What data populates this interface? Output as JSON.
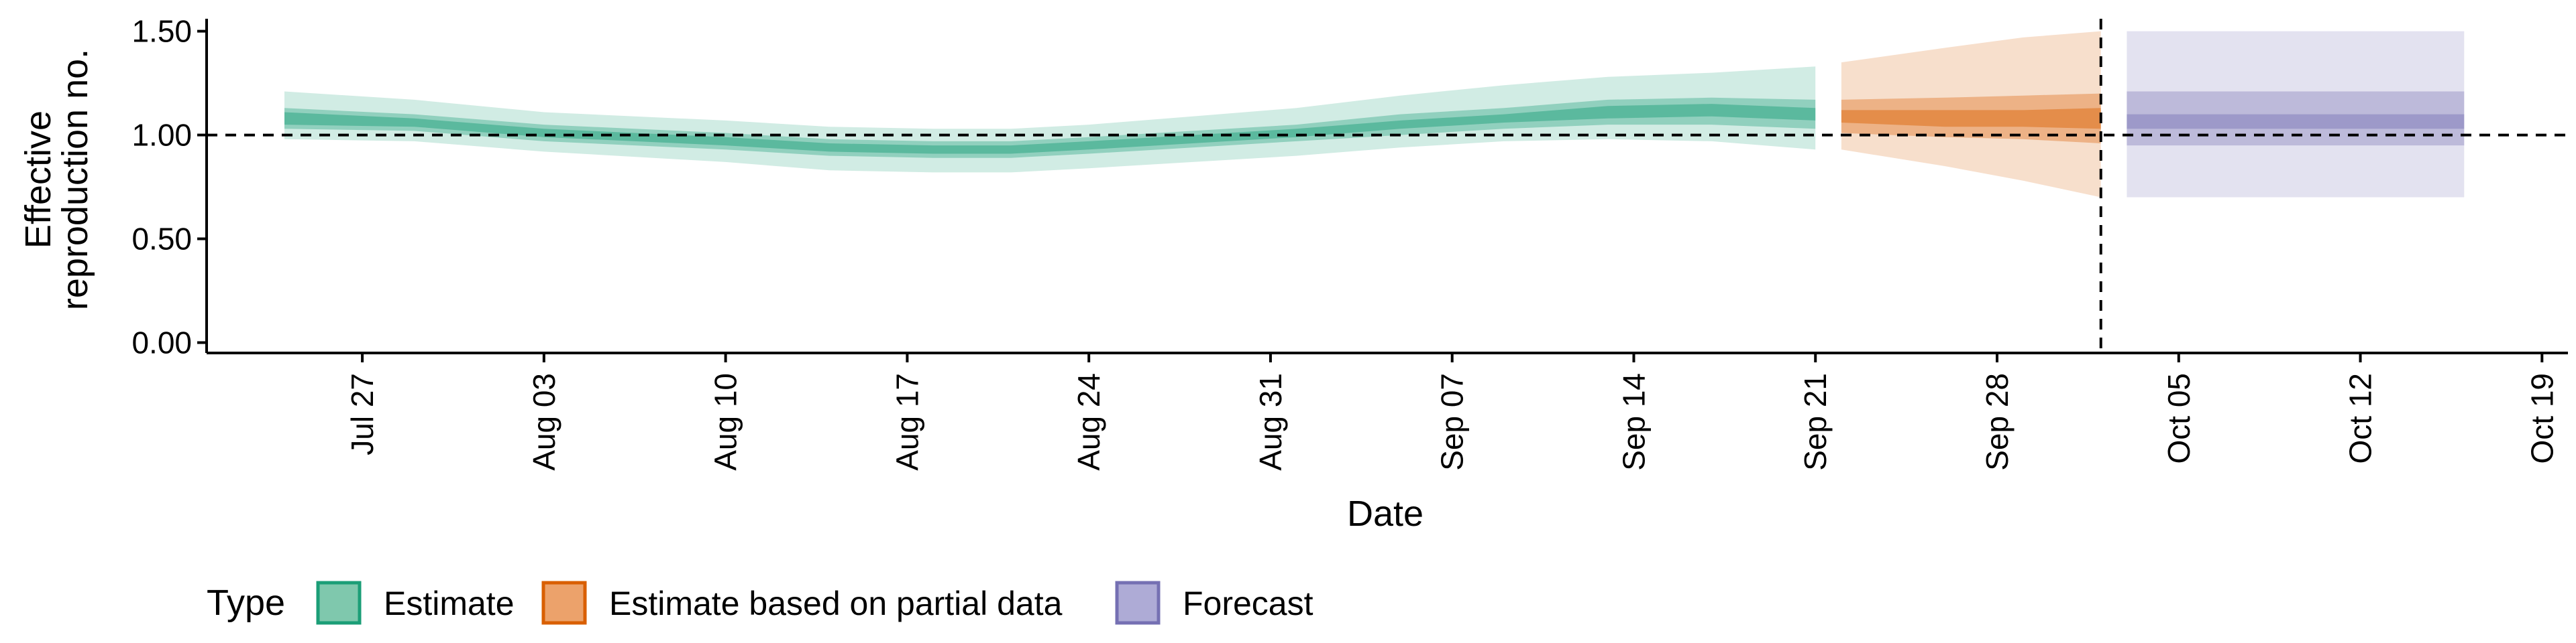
{
  "chart_data": {
    "type": "area",
    "xlabel": "Date",
    "ylabel_lines": [
      "Effective",
      "reproduction no."
    ],
    "x_range": [
      "2020-07-21",
      "2020-10-20"
    ],
    "ylim": [
      -0.05,
      1.56
    ],
    "y_ticks": [
      0.0,
      0.5,
      1.0,
      1.5
    ],
    "y_tick_labels": [
      "0.00",
      "0.50",
      "1.00",
      "1.50"
    ],
    "x_ticks": [
      "2020-07-27",
      "2020-08-03",
      "2020-08-10",
      "2020-08-17",
      "2020-08-24",
      "2020-08-31",
      "2020-09-07",
      "2020-09-14",
      "2020-09-21",
      "2020-09-28",
      "2020-10-05",
      "2020-10-12",
      "2020-10-19"
    ],
    "x_tick_labels": [
      "Jul 27",
      "Aug 03",
      "Aug 10",
      "Aug 17",
      "Aug 24",
      "Aug 31",
      "Sep 07",
      "Sep 14",
      "Sep 21",
      "Sep 28",
      "Oct 05",
      "Oct 12",
      "Oct 19"
    ],
    "reference_line_y": 1.0,
    "vertical_line_date": "2020-10-02",
    "grid": false,
    "legend": {
      "title": "Type",
      "placement": "bottom",
      "entries": [
        {
          "label": "Estimate",
          "fill": "#7fc8ad",
          "border": "#1b9e77"
        },
        {
          "label": "Estimate based on partial data",
          "fill": "#eca26b",
          "border": "#d95f02"
        },
        {
          "label": "Forecast",
          "fill": "#aeabd6",
          "border": "#7570b3"
        }
      ]
    },
    "series": [
      {
        "name": "Estimate",
        "color": "#1b9e77",
        "points": [
          {
            "date": "2020-07-24",
            "median": 1.08,
            "lo25": 1.05,
            "hi25": 1.11,
            "lo50": 1.03,
            "hi50": 1.13,
            "lo90": 0.98,
            "hi90": 1.21
          },
          {
            "date": "2020-07-29",
            "median": 1.06,
            "lo25": 1.04,
            "hi25": 1.08,
            "lo50": 1.02,
            "hi50": 1.1,
            "lo90": 0.97,
            "hi90": 1.17
          },
          {
            "date": "2020-08-03",
            "median": 1.01,
            "lo25": 0.99,
            "hi25": 1.03,
            "lo50": 0.97,
            "hi50": 1.05,
            "lo90": 0.92,
            "hi90": 1.11
          },
          {
            "date": "2020-08-10",
            "median": 0.97,
            "lo25": 0.95,
            "hi25": 0.99,
            "lo50": 0.93,
            "hi50": 1.01,
            "lo90": 0.87,
            "hi90": 1.07
          },
          {
            "date": "2020-08-14",
            "median": 0.94,
            "lo25": 0.92,
            "hi25": 0.96,
            "lo50": 0.9,
            "hi50": 0.98,
            "lo90": 0.83,
            "hi90": 1.04
          },
          {
            "date": "2020-08-18",
            "median": 0.93,
            "lo25": 0.91,
            "hi25": 0.95,
            "lo50": 0.89,
            "hi50": 0.97,
            "lo90": 0.82,
            "hi90": 1.03
          },
          {
            "date": "2020-08-21",
            "median": 0.93,
            "lo25": 0.91,
            "hi25": 0.95,
            "lo50": 0.89,
            "hi50": 0.97,
            "lo90": 0.82,
            "hi90": 1.03
          },
          {
            "date": "2020-08-24",
            "median": 0.95,
            "lo25": 0.93,
            "hi25": 0.97,
            "lo50": 0.91,
            "hi50": 0.99,
            "lo90": 0.84,
            "hi90": 1.05
          },
          {
            "date": "2020-08-28",
            "median": 0.98,
            "lo25": 0.96,
            "hi25": 1.0,
            "lo50": 0.94,
            "hi50": 1.02,
            "lo90": 0.87,
            "hi90": 1.09
          },
          {
            "date": "2020-09-01",
            "median": 1.01,
            "lo25": 0.99,
            "hi25": 1.03,
            "lo50": 0.97,
            "hi50": 1.05,
            "lo90": 0.9,
            "hi90": 1.13
          },
          {
            "date": "2020-09-05",
            "median": 1.05,
            "lo25": 1.03,
            "hi25": 1.07,
            "lo50": 1.0,
            "hi50": 1.1,
            "lo90": 0.94,
            "hi90": 1.19
          },
          {
            "date": "2020-09-09",
            "median": 1.08,
            "lo25": 1.06,
            "hi25": 1.1,
            "lo50": 1.03,
            "hi50": 1.13,
            "lo90": 0.97,
            "hi90": 1.24
          },
          {
            "date": "2020-09-13",
            "median": 1.11,
            "lo25": 1.08,
            "hi25": 1.14,
            "lo50": 1.05,
            "hi50": 1.17,
            "lo90": 0.98,
            "hi90": 1.28
          },
          {
            "date": "2020-09-17",
            "median": 1.12,
            "lo25": 1.09,
            "hi25": 1.15,
            "lo50": 1.05,
            "hi50": 1.18,
            "lo90": 0.97,
            "hi90": 1.3
          },
          {
            "date": "2020-09-21",
            "median": 1.1,
            "lo25": 1.07,
            "hi25": 1.13,
            "lo50": 1.03,
            "hi50": 1.17,
            "lo90": 0.93,
            "hi90": 1.33
          }
        ]
      },
      {
        "name": "Estimate based on partial data",
        "color": "#d95f02",
        "points": [
          {
            "date": "2020-09-22",
            "median": 1.09,
            "lo25": 1.06,
            "hi25": 1.12,
            "lo50": 1.01,
            "hi50": 1.17,
            "lo90": 0.93,
            "hi90": 1.35
          },
          {
            "date": "2020-09-26",
            "median": 1.08,
            "lo25": 1.04,
            "hi25": 1.12,
            "lo50": 0.99,
            "hi50": 1.18,
            "lo90": 0.85,
            "hi90": 1.42
          },
          {
            "date": "2020-09-29",
            "median": 1.08,
            "lo25": 1.04,
            "hi25": 1.12,
            "lo50": 0.98,
            "hi50": 1.19,
            "lo90": 0.78,
            "hi90": 1.47
          },
          {
            "date": "2020-10-02",
            "median": 1.08,
            "lo25": 1.03,
            "hi25": 1.13,
            "lo50": 0.96,
            "hi50": 1.2,
            "lo90": 0.7,
            "hi90": 1.5
          }
        ]
      },
      {
        "name": "Forecast",
        "color": "#7570b3",
        "points": [
          {
            "date": "2020-10-03",
            "median": 1.07,
            "lo25": 1.03,
            "hi25": 1.1,
            "lo50": 0.95,
            "hi50": 1.21,
            "lo90": 0.7,
            "hi90": 1.5
          },
          {
            "date": "2020-10-16",
            "median": 1.07,
            "lo25": 1.03,
            "hi25": 1.1,
            "lo50": 0.95,
            "hi50": 1.21,
            "lo90": 0.7,
            "hi90": 1.5
          }
        ]
      }
    ]
  }
}
